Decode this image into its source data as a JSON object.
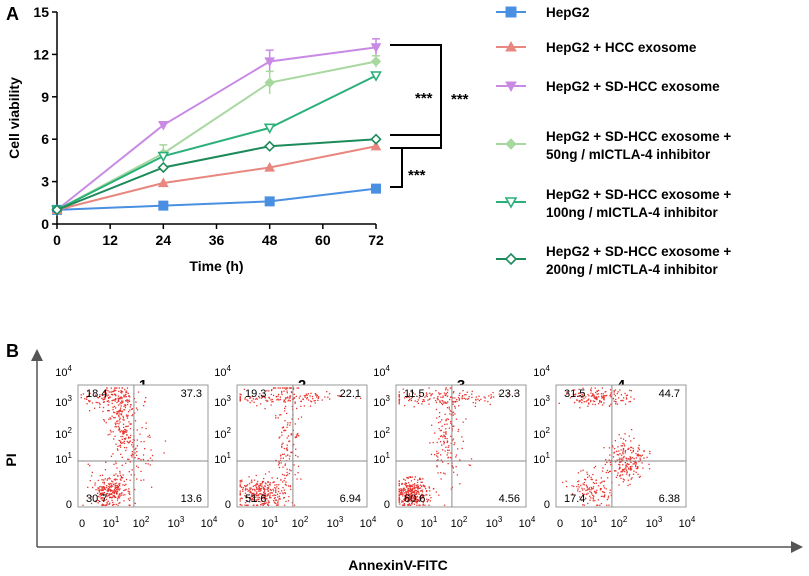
{
  "panel_a": {
    "letter": "A",
    "significance": "***"
  },
  "panel_b": {
    "letter": "B",
    "ylabel": "PI",
    "xlabel": "AnnexinV-FITC",
    "tick_labels": [
      "0",
      "10",
      "10",
      "10",
      "10"
    ],
    "tick_exponents": [
      "",
      "1",
      "2",
      "3",
      "4"
    ]
  },
  "chart_data": [
    {
      "type": "line",
      "xlabel": "Time (h)",
      "ylabel": "Cell viability",
      "x": [
        0,
        24,
        48,
        72
      ],
      "xticks": [
        0,
        12,
        24,
        36,
        48,
        60,
        72
      ],
      "yticks": [
        0,
        3,
        6,
        9,
        12,
        15
      ],
      "xlim": [
        0,
        72
      ],
      "ylim": [
        0,
        15
      ],
      "series": [
        {
          "name": "HepG2",
          "color": "#4a90e2",
          "marker": "square",
          "values": [
            1.0,
            1.3,
            1.6,
            2.5
          ]
        },
        {
          "name": "HepG2 + HCC  exosome",
          "color": "#e8877f",
          "marker": "triangle-up",
          "values": [
            1.0,
            2.9,
            4.0,
            5.5
          ]
        },
        {
          "name": "HepG2 + SD-HCC  exosome",
          "color": "#c98ae6",
          "marker": "triangle-down",
          "values": [
            1.0,
            7.0,
            11.5,
            12.5
          ],
          "errors": [
            0,
            0.2,
            0.8,
            0.6
          ]
        },
        {
          "name": "HepG2 +  SD-HCC exosome + 50ng  / mICTLA-4  inhibitor",
          "legend_lines": [
            "HepG2 +  SD-HCC exosome +",
            "50ng  / mICTLA-4  inhibitor"
          ],
          "color": "#a8d8a0",
          "marker": "diamond",
          "values": [
            1.0,
            5.0,
            10.0,
            11.5
          ],
          "errors": [
            0,
            0.6,
            0.8,
            0.4
          ]
        },
        {
          "name": "HepG2 +  SD-HCC exosome + 100ng  / mICTLA-4  inhibitor",
          "legend_lines": [
            "HepG2 +  SD-HCC exosome +",
            "100ng  / mICTLA-4  inhibitor"
          ],
          "color": "#2bb07a",
          "marker": "triangle-down-open",
          "values": [
            1.0,
            4.8,
            6.8,
            10.5
          ]
        },
        {
          "name": "HepG2 +  SD-HCC exosome + 200ng  / mICTLA-4  inhibitor",
          "legend_lines": [
            "HepG2 +  SD-HCC exosome +",
            "200ng  / mICTLA-4  inhibitor"
          ],
          "color": "#1d8a5a",
          "marker": "diamond-open",
          "values": [
            1.0,
            4.0,
            5.5,
            6.0
          ]
        }
      ]
    },
    {
      "type": "scatter",
      "subtype": "flow-cytometry-quadrant",
      "xlabel": "AnnexinV-FITC",
      "ylabel": "PI",
      "plots": [
        {
          "title": "1",
          "upper_left": "18.4",
          "upper_right": "37.3",
          "lower_left": "30.7",
          "lower_right": "13.6"
        },
        {
          "title": "2",
          "upper_left": "19.3",
          "upper_right": "22.1",
          "lower_left": "51.6",
          "lower_right": "6.94"
        },
        {
          "title": "3",
          "upper_left": "11.5",
          "upper_right": "23.3",
          "lower_left": "60.6",
          "lower_right": "4.56"
        },
        {
          "title": "4",
          "upper_left": "31.5",
          "upper_right": "44.7",
          "lower_left": "17.4",
          "lower_right": "6.38"
        }
      ]
    }
  ]
}
